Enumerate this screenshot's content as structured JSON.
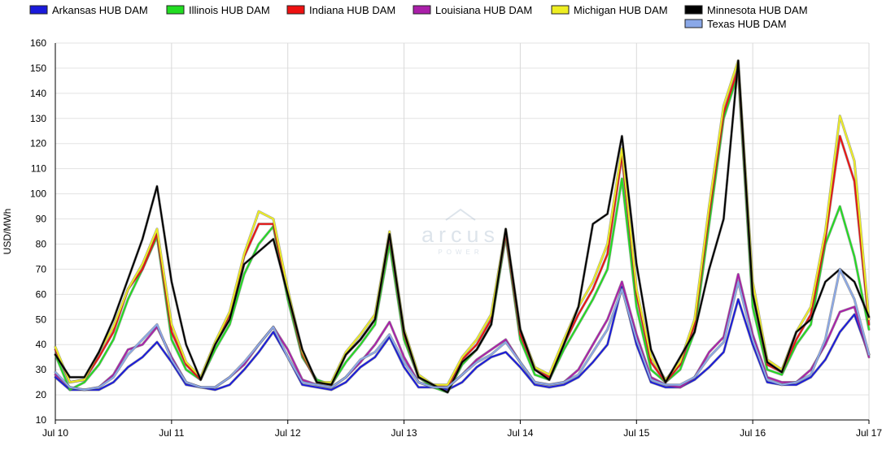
{
  "chart_data": {
    "type": "line",
    "ylabel": "USD/MWh",
    "ylim": [
      10,
      160
    ],
    "yticks": [
      10,
      20,
      30,
      40,
      50,
      60,
      70,
      80,
      90,
      100,
      110,
      120,
      130,
      140,
      150,
      160
    ],
    "xlim": [
      0,
      168
    ],
    "x_tick_labels": [
      "Jul 10",
      "Jul 11",
      "Jul 12",
      "Jul 13",
      "Jul 14",
      "Jul 15",
      "Jul 16",
      "Jul 17"
    ],
    "x_tick_positions": [
      0,
      24,
      48,
      72,
      96,
      120,
      144,
      168
    ],
    "grid": true,
    "legend_position": "top",
    "watermark": {
      "main": "arcus",
      "sub": "POWER"
    },
    "x": [
      0,
      3,
      6,
      9,
      12,
      15,
      18,
      21,
      24,
      27,
      30,
      33,
      36,
      39,
      42,
      45,
      48,
      51,
      54,
      57,
      60,
      63,
      66,
      69,
      72,
      75,
      78,
      81,
      84,
      87,
      90,
      93,
      96,
      99,
      102,
      105,
      108,
      111,
      114,
      117,
      120,
      123,
      126,
      129,
      132,
      135,
      138,
      141,
      144,
      147,
      150,
      153,
      156,
      159,
      162,
      165,
      168
    ],
    "series": [
      {
        "name": "Arkansas HUB DAM",
        "color": "#1a1adb",
        "values": [
          27,
          22,
          22,
          22,
          25,
          31,
          35,
          41,
          33,
          24,
          23,
          22,
          24,
          30,
          37,
          45,
          35,
          24,
          23,
          22,
          25,
          31,
          35,
          43,
          31,
          23,
          23,
          22,
          25,
          31,
          35,
          37,
          31,
          24,
          23,
          24,
          27,
          33,
          40,
          63,
          40,
          25,
          23,
          23,
          26,
          31,
          37,
          58,
          40,
          25,
          24,
          24,
          27,
          34,
          45,
          52,
          36
        ]
      },
      {
        "name": "Illinois HUB DAM",
        "color": "#22dd22",
        "values": [
          36,
          22,
          25,
          32,
          42,
          58,
          70,
          83,
          42,
          30,
          26,
          38,
          48,
          68,
          80,
          87,
          58,
          35,
          26,
          24,
          33,
          40,
          48,
          80,
          42,
          27,
          23,
          21,
          32,
          38,
          48,
          83,
          42,
          28,
          26,
          38,
          48,
          58,
          70,
          106,
          55,
          30,
          25,
          30,
          45,
          88,
          130,
          148,
          55,
          30,
          28,
          40,
          48,
          80,
          95,
          75,
          46
        ]
      },
      {
        "name": "Indiana HUB DAM",
        "color": "#ee1111",
        "values": [
          38,
          25,
          26,
          35,
          45,
          62,
          70,
          84,
          45,
          32,
          26,
          40,
          52,
          75,
          88,
          88,
          60,
          36,
          25,
          24,
          36,
          42,
          50,
          83,
          44,
          27,
          24,
          23,
          34,
          40,
          50,
          84,
          44,
          30,
          27,
          40,
          52,
          62,
          76,
          115,
          60,
          33,
          25,
          32,
          48,
          92,
          132,
          150,
          60,
          32,
          29,
          42,
          52,
          82,
          123,
          105,
          48
        ]
      },
      {
        "name": "Louisiana HUB DAM",
        "color": "#aa1fa9",
        "values": [
          28,
          23,
          22,
          23,
          28,
          38,
          40,
          47,
          35,
          25,
          23,
          23,
          27,
          32,
          40,
          47,
          38,
          26,
          24,
          23,
          27,
          33,
          40,
          49,
          35,
          25,
          23,
          23,
          28,
          34,
          38,
          42,
          33,
          25,
          24,
          25,
          30,
          40,
          50,
          65,
          44,
          27,
          24,
          23,
          27,
          37,
          43,
          68,
          44,
          27,
          25,
          25,
          30,
          40,
          53,
          55,
          35
        ]
      },
      {
        "name": "Michigan HUB DAM",
        "color": "#eeee22",
        "values": [
          39,
          25,
          26,
          37,
          47,
          62,
          72,
          86,
          48,
          33,
          27,
          41,
          53,
          76,
          93,
          90,
          62,
          37,
          25,
          25,
          37,
          44,
          52,
          85,
          46,
          28,
          24,
          24,
          35,
          42,
          52,
          86,
          46,
          31,
          28,
          42,
          55,
          65,
          80,
          118,
          62,
          35,
          26,
          33,
          50,
          95,
          135,
          153,
          65,
          34,
          30,
          45,
          55,
          85,
          131,
          113,
          50
        ]
      },
      {
        "name": "Minnesota HUB DAM",
        "color": "#000000",
        "values": [
          36,
          27,
          27,
          37,
          50,
          66,
          82,
          103,
          65,
          40,
          26,
          40,
          50,
          72,
          77,
          82,
          60,
          38,
          25,
          24,
          36,
          42,
          50,
          84,
          45,
          27,
          24,
          21,
          33,
          38,
          48,
          86,
          46,
          30,
          26,
          40,
          55,
          88,
          92,
          123,
          72,
          38,
          25,
          35,
          45,
          70,
          90,
          153,
          60,
          33,
          29,
          45,
          50,
          65,
          70,
          65,
          51
        ]
      },
      {
        "name": "Texas HUB DAM",
        "color": "#8aa8e8",
        "values": [
          29,
          23,
          22,
          23,
          27,
          36,
          42,
          48,
          34,
          25,
          23,
          23,
          27,
          33,
          40,
          47,
          35,
          25,
          24,
          23,
          27,
          34,
          37,
          44,
          33,
          25,
          23,
          23,
          28,
          33,
          36,
          41,
          33,
          25,
          24,
          25,
          28,
          37,
          46,
          62,
          42,
          26,
          24,
          24,
          27,
          35,
          41,
          65,
          42,
          26,
          24,
          25,
          28,
          42,
          70,
          58,
          36
        ]
      }
    ]
  }
}
